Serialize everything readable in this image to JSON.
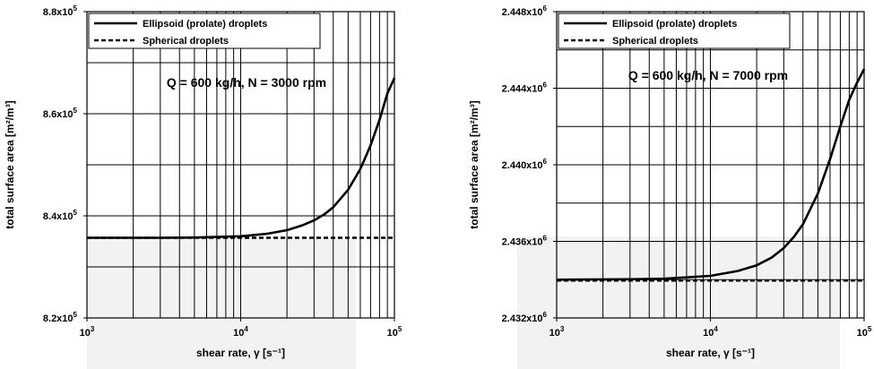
{
  "chart_data": [
    {
      "type": "line",
      "title": "",
      "annotation": "Q = 600 kg/h, N = 3000 rpm",
      "xlabel": "shear rate, γ [s⁻¹]",
      "ylabel": "total surface area [m²/m³]",
      "xscale": "log",
      "xlim": [
        1000,
        100000
      ],
      "ylim": [
        820000,
        880000
      ],
      "x_ticks": [
        "10^3",
        "10^4",
        "10^5"
      ],
      "y_ticks": [
        "8.2x10^5",
        "8.4x10^5",
        "8.6x10^5",
        "8.8x10^5"
      ],
      "grid": true,
      "legend_position": "top-left",
      "series": [
        {
          "name": "Ellipsoid (prolate) droplets",
          "style": "solid",
          "x": [
            1000,
            3000,
            5000,
            10000,
            15000,
            20000,
            25000,
            30000,
            35000,
            40000,
            50000,
            60000,
            70000,
            80000,
            90000,
            100000
          ],
          "y": [
            835700,
            835700,
            835750,
            836000,
            836500,
            837200,
            838100,
            839100,
            840300,
            841700,
            845100,
            849200,
            853800,
            858800,
            864000,
            867000
          ]
        },
        {
          "name": "Spherical droplets",
          "style": "dashed",
          "x": [
            1000,
            100000
          ],
          "y": [
            835700,
            835700
          ]
        }
      ]
    },
    {
      "type": "line",
      "title": "",
      "annotation": "Q = 600 kg/h, N = 7000 rpm",
      "xlabel": "shear rate, γ [s⁻¹]",
      "ylabel": "total surface area [m²/m³]",
      "xscale": "log",
      "xlim": [
        1000,
        100000
      ],
      "ylim": [
        2432000,
        2448000
      ],
      "x_ticks": [
        "10^3",
        "10^4",
        "10^5"
      ],
      "y_ticks": [
        "2.432x10^6",
        "2.436x10^6",
        "2.440x10^6",
        "2.444x10^6",
        "2.448x10^6"
      ],
      "grid": true,
      "legend_position": "top-left",
      "series": [
        {
          "name": "Ellipsoid (prolate) droplets",
          "style": "solid",
          "x": [
            1000,
            3000,
            5000,
            10000,
            15000,
            20000,
            25000,
            30000,
            35000,
            40000,
            50000,
            60000,
            70000,
            80000,
            90000,
            100000
          ],
          "y": [
            2434000,
            2434020,
            2434050,
            2434200,
            2434450,
            2434750,
            2435150,
            2435650,
            2436250,
            2436900,
            2438500,
            2440300,
            2442000,
            2443400,
            2444300,
            2445000
          ]
        },
        {
          "name": "Spherical droplets",
          "style": "dashed",
          "x": [
            1000,
            100000
          ],
          "y": [
            2433950,
            2433950
          ]
        }
      ]
    }
  ]
}
